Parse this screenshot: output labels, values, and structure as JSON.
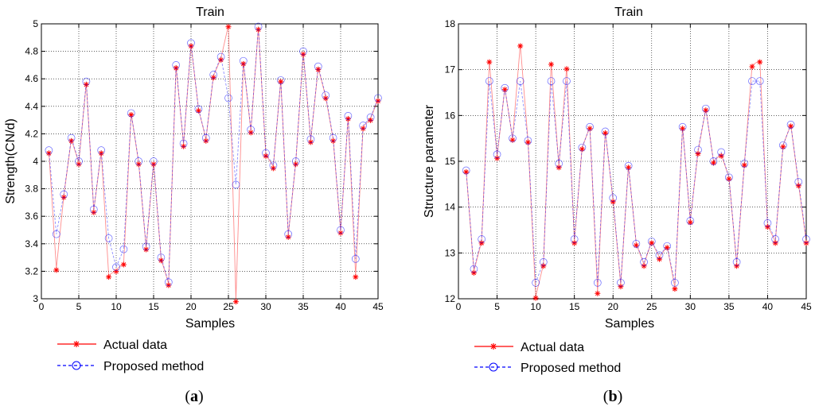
{
  "chart_data": [
    {
      "type": "line",
      "panel_label": "a",
      "title": "Train",
      "xlabel": "Samples",
      "ylabel": "Strength(CN/d)",
      "xlim": [
        0,
        45
      ],
      "ylim": [
        3,
        5
      ],
      "xticks": [
        "0",
        "5",
        "10",
        "15",
        "20",
        "25",
        "30",
        "35",
        "40",
        "45"
      ],
      "yticks": [
        "3",
        "3.2",
        "3.4",
        "3.6",
        "3.8",
        "4",
        "4.2",
        "4.4",
        "4.6",
        "4.8",
        "5"
      ],
      "grid": true,
      "legend_position": "bottom-left",
      "x": [
        1,
        2,
        3,
        4,
        5,
        6,
        7,
        8,
        9,
        10,
        11,
        12,
        13,
        14,
        15,
        16,
        17,
        18,
        19,
        20,
        21,
        22,
        23,
        24,
        25,
        26,
        27,
        28,
        29,
        30,
        31,
        32,
        33,
        34,
        35,
        36,
        37,
        38,
        39,
        40,
        41,
        42,
        43,
        44,
        45
      ],
      "series": [
        {
          "name": "Actual data",
          "color": "#ff0000",
          "marker": "asterisk",
          "values": [
            4.07,
            3.22,
            3.75,
            4.16,
            3.99,
            4.57,
            3.64,
            4.07,
            3.17,
            3.21,
            3.26,
            4.35,
            3.99,
            3.37,
            3.99,
            3.29,
            3.11,
            4.69,
            4.12,
            4.85,
            4.38,
            4.16,
            4.62,
            4.75,
            4.99,
            2.99,
            4.72,
            4.22,
            4.97,
            4.05,
            3.96,
            4.59,
            3.46,
            3.99,
            4.79,
            4.15,
            4.68,
            4.47,
            4.16,
            3.49,
            4.32,
            3.17,
            4.25,
            4.31,
            4.45
          ]
        },
        {
          "name": "Proposed method",
          "color": "#0000ff",
          "marker": "circle",
          "values": [
            4.08,
            3.47,
            3.76,
            4.17,
            4.0,
            4.58,
            3.65,
            4.08,
            3.44,
            3.23,
            3.36,
            4.35,
            4.0,
            3.38,
            4.0,
            3.3,
            3.12,
            4.7,
            4.13,
            4.86,
            4.38,
            4.17,
            4.63,
            4.76,
            4.46,
            3.83,
            4.73,
            4.23,
            4.98,
            4.06,
            3.97,
            4.59,
            3.47,
            4.0,
            4.8,
            4.16,
            4.69,
            4.48,
            4.17,
            3.5,
            4.33,
            3.29,
            4.26,
            4.32,
            4.46
          ]
        }
      ]
    },
    {
      "type": "line",
      "panel_label": "b",
      "title": "Train",
      "xlabel": "Samples",
      "ylabel": "Structure parameter",
      "xlim": [
        0,
        45
      ],
      "ylim": [
        12,
        18
      ],
      "xticks": [
        "0",
        "5",
        "10",
        "15",
        "20",
        "25",
        "30",
        "35",
        "40",
        "45"
      ],
      "yticks": [
        "12",
        "13",
        "14",
        "15",
        "16",
        "17",
        "18"
      ],
      "grid": true,
      "legend_position": "bottom-left",
      "x": [
        1,
        2,
        3,
        4,
        5,
        6,
        7,
        8,
        9,
        10,
        11,
        12,
        13,
        14,
        15,
        16,
        17,
        18,
        19,
        20,
        21,
        22,
        23,
        24,
        25,
        26,
        27,
        28,
        29,
        30,
        31,
        32,
        33,
        34,
        35,
        36,
        37,
        38,
        39,
        40,
        41,
        42,
        43,
        44,
        45
      ],
      "series": [
        {
          "name": "Actual data",
          "color": "#ff0000",
          "marker": "asterisk",
          "values": [
            14.8,
            12.6,
            13.25,
            17.2,
            15.1,
            16.6,
            15.5,
            17.55,
            15.45,
            12.05,
            12.75,
            17.15,
            14.9,
            17.05,
            13.25,
            15.3,
            15.75,
            12.15,
            15.65,
            14.15,
            12.3,
            14.9,
            13.2,
            12.75,
            13.25,
            12.9,
            13.15,
            12.25,
            15.75,
            13.7,
            15.2,
            16.15,
            15.0,
            15.15,
            14.65,
            12.75,
            14.95,
            17.1,
            17.2,
            13.6,
            13.25,
            15.35,
            15.8,
            14.5,
            13.25
          ]
        },
        {
          "name": "Proposed method",
          "color": "#0000ff",
          "marker": "circle",
          "values": [
            14.8,
            12.65,
            13.3,
            16.75,
            15.15,
            16.6,
            15.5,
            16.75,
            15.45,
            12.35,
            12.8,
            16.75,
            14.95,
            16.75,
            13.3,
            15.3,
            15.75,
            12.35,
            15.65,
            14.2,
            12.35,
            14.9,
            13.2,
            12.8,
            13.25,
            12.95,
            13.15,
            12.35,
            15.75,
            13.7,
            15.25,
            16.15,
            15.0,
            15.2,
            14.65,
            12.8,
            14.95,
            16.75,
            16.75,
            13.65,
            13.3,
            15.35,
            15.8,
            14.55,
            13.3
          ]
        }
      ]
    }
  ]
}
